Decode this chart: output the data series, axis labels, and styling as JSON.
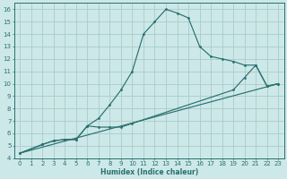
{
  "xlabel": "Humidex (Indice chaleur)",
  "xlim": [
    -0.5,
    23.5
  ],
  "ylim": [
    4,
    16.5
  ],
  "xticks": [
    0,
    1,
    2,
    3,
    4,
    5,
    6,
    7,
    8,
    9,
    10,
    11,
    12,
    13,
    14,
    15,
    16,
    17,
    18,
    19,
    20,
    21,
    22,
    23
  ],
  "yticks": [
    4,
    5,
    6,
    7,
    8,
    9,
    10,
    11,
    12,
    13,
    14,
    15,
    16
  ],
  "background_color": "#cde8e8",
  "grid_color": "#a8cccc",
  "line_color": "#2a7070",
  "curve1_x": [
    0,
    2,
    3,
    4,
    5,
    6,
    7,
    8,
    9,
    10,
    11,
    12,
    13,
    14,
    15,
    16,
    17,
    18,
    19,
    20,
    21,
    22,
    23
  ],
  "curve1_y": [
    4.4,
    5.1,
    5.4,
    5.5,
    5.5,
    6.6,
    7.2,
    8.3,
    9.5,
    11.0,
    14.0,
    15.0,
    16.0,
    15.7,
    15.3,
    13.0,
    12.2,
    12.0,
    11.8,
    11.5,
    11.5,
    9.8,
    10.0
  ],
  "curve2_x": [
    0,
    2,
    3,
    4,
    5,
    6,
    7,
    8,
    9,
    10,
    19,
    20,
    21,
    22,
    23
  ],
  "curve2_y": [
    4.4,
    5.1,
    5.4,
    5.5,
    5.5,
    6.6,
    6.5,
    6.5,
    6.5,
    6.8,
    9.5,
    10.5,
    11.5,
    9.8,
    10.0
  ],
  "line3_x": [
    0,
    23
  ],
  "line3_y": [
    4.4,
    10.0
  ]
}
